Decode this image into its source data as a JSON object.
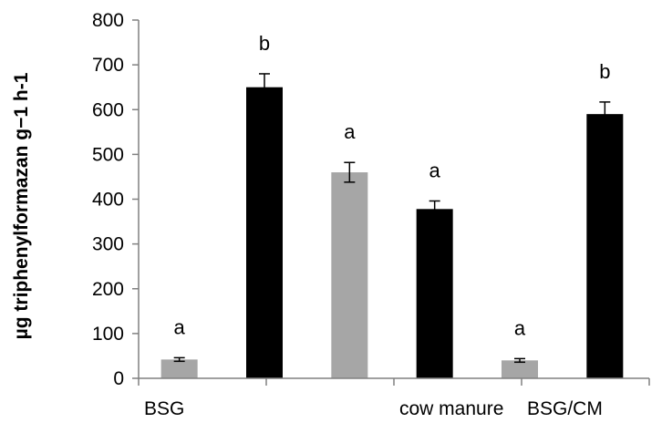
{
  "chart_data": {
    "type": "bar",
    "title": "",
    "ylabel": "µg triphenylformazan g−1 h-1",
    "xlabel": "",
    "ylim": [
      0,
      800
    ],
    "ytick_step": 100,
    "yticks": [
      "0",
      "100",
      "200",
      "300",
      "400",
      "500",
      "600",
      "700",
      "800"
    ],
    "grid": false,
    "categories": [
      "BSG",
      "",
      "cow manure",
      "BSG/CM"
    ],
    "bars": [
      {
        "value": 42,
        "error": 4,
        "color": "#a6a6a6",
        "significance": "a"
      },
      {
        "value": 650,
        "error": 30,
        "color": "#000000",
        "significance": "b"
      },
      {
        "value": 460,
        "error": 22,
        "color": "#a6a6a6",
        "significance": "a"
      },
      {
        "value": 378,
        "error": 18,
        "color": "#000000",
        "significance": "a"
      },
      {
        "value": 40,
        "error": 4,
        "color": "#a6a6a6",
        "significance": "a"
      },
      {
        "value": 590,
        "error": 27,
        "color": "#000000",
        "significance": "b"
      }
    ]
  }
}
